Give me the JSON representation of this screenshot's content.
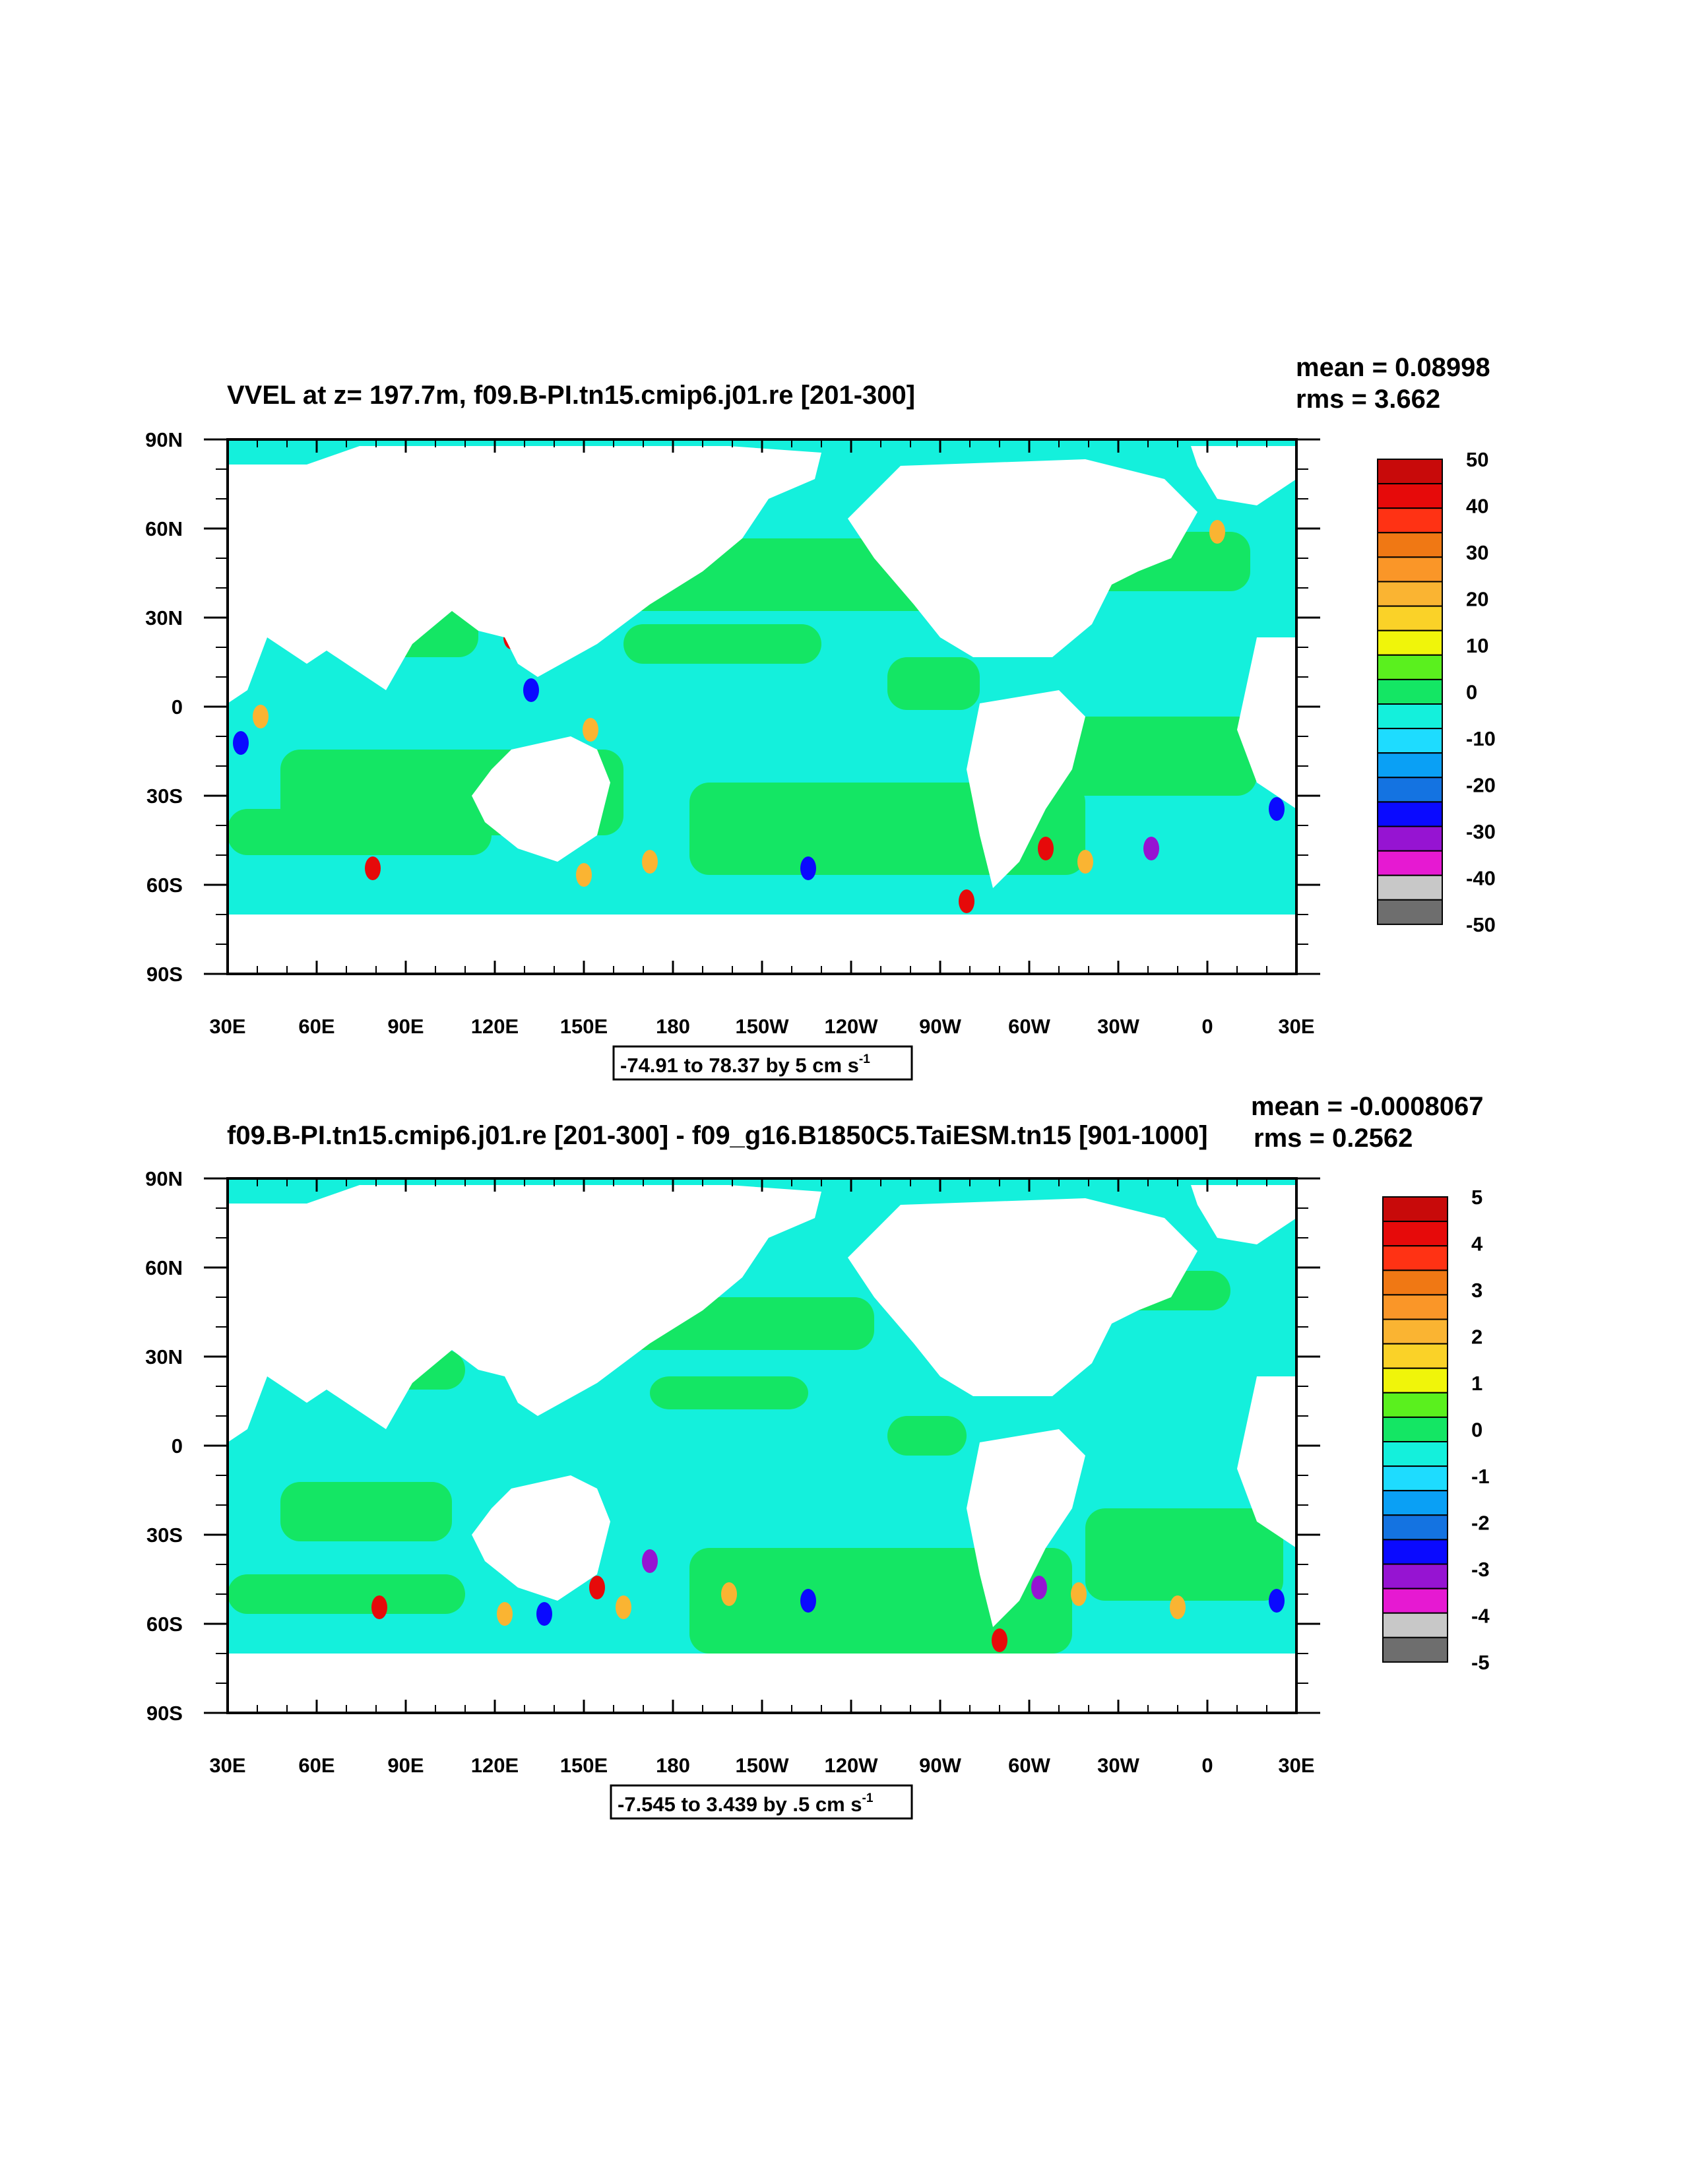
{
  "panels": [
    {
      "title": "VVEL at z= 197.7m, f09.B-PI.tn15.cmip6.j01.re [201-300]",
      "mean_text": "mean = 0.08998",
      "rms_text": "rms = 3.662",
      "info_text": "-74.91 to 78.37 by 5 cm s",
      "info_sup": "-1",
      "colorbar_labels": [
        "50",
        "40",
        "30",
        "20",
        "10",
        "0",
        "-10",
        "-20",
        "-30",
        "-40",
        "-50"
      ]
    },
    {
      "title": "f09.B-PI.tn15.cmip6.j01.re [201-300] - f09_g16.B1850C5.TaiESM.tn15 [901-1000]",
      "mean_text": "mean = -0.0008067",
      "rms_text": "rms = 0.2562",
      "info_text": "-7.545 to 3.439 by .5 cm s",
      "info_sup": "-1",
      "colorbar_labels": [
        "5",
        "4",
        "3",
        "2",
        "1",
        "0",
        "-1",
        "-2",
        "-3",
        "-4",
        "-5"
      ]
    }
  ],
  "axes": {
    "lat_labels": [
      "90N",
      "60N",
      "30N",
      "0",
      "30S",
      "60S",
      "90S"
    ],
    "lon_labels": [
      "30E",
      "60E",
      "90E",
      "120E",
      "150E",
      "180",
      "150W",
      "120W",
      "90W",
      "60W",
      "30W",
      "0",
      "30E"
    ]
  },
  "colorbar_colors": [
    "#6e6e6e",
    "#c8c8c8",
    "#e619d2",
    "#9614d2",
    "#0a0aff",
    "#1473e1",
    "#0aa0f5",
    "#1edcff",
    "#14f0dc",
    "#14e664",
    "#5af01e",
    "#f0f50a",
    "#fad228",
    "#fab432",
    "#fa9628",
    "#f07814",
    "#ff3214",
    "#e60a0a",
    "#c80a0a"
  ],
  "map_colors": {
    "land": "#ffffff",
    "ocean_cyan": "#14f0dc",
    "ocean_green": "#14e664",
    "positive_hot": "#fab432",
    "positive_red": "#e60a0a",
    "negative_blue": "#0a0aff",
    "negative_violet": "#9614d2"
  }
}
